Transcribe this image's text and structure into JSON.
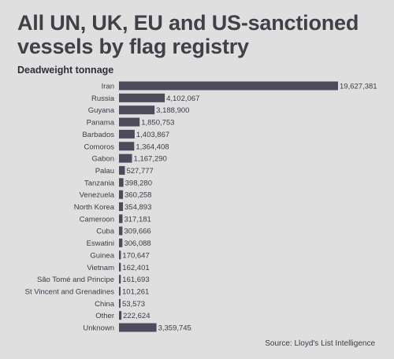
{
  "chart_data": {
    "type": "bar",
    "orientation": "horizontal",
    "title": "All UN, UK, EU and US-sanctioned vessels by flag registry",
    "subtitle": "Deadweight tonnage",
    "source": "Source: Lloyd's List Intelligence",
    "bar_color": "#4b4b5c",
    "xlim": [
      0,
      19627381
    ],
    "categories": [
      "Iran",
      "Russia",
      "Guyana",
      "Panama",
      "Barbados",
      "Comoros",
      "Gabon",
      "Palau",
      "Tanzania",
      "Venezuela",
      "North Korea",
      "Cameroon",
      "Cuba",
      "Eswatini",
      "Guinea",
      "Vietnam",
      "São Tomé and Principe",
      "St Vincent and Grenadines",
      "China",
      "Other",
      "Unknown"
    ],
    "values": [
      19627381,
      4102067,
      3188900,
      1850753,
      1403867,
      1364408,
      1167290,
      527777,
      398280,
      360258,
      354893,
      317181,
      309666,
      306088,
      170647,
      162401,
      161693,
      101261,
      53573,
      222624,
      3359745
    ],
    "value_labels": [
      "19,627,381",
      "4,102,067",
      "3,188,900",
      "1,850,753",
      "1,403,867",
      "1,364,408",
      "1,167,290",
      "527,777",
      "398,280",
      "360,258",
      "354,893",
      "317,181",
      "309,666",
      "306,088",
      "170,647",
      "162,401",
      "161,693",
      "101,261",
      "53,573",
      "222,624",
      "3,359,745"
    ]
  }
}
